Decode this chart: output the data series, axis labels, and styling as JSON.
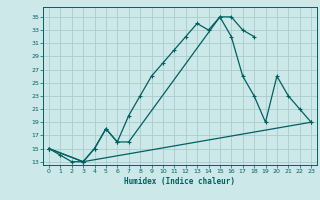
{
  "xlabel": "Humidex (Indice chaleur)",
  "bg_color": "#cde8e8",
  "grid_color": "#aacccc",
  "line_color": "#006060",
  "xlim": [
    -0.5,
    23.5
  ],
  "ylim": [
    12.5,
    36.5
  ],
  "xticks": [
    0,
    1,
    2,
    3,
    4,
    5,
    6,
    7,
    8,
    9,
    10,
    11,
    12,
    13,
    14,
    15,
    16,
    17,
    18,
    19,
    20,
    21,
    22,
    23
  ],
  "yticks": [
    13,
    15,
    17,
    19,
    21,
    23,
    25,
    27,
    29,
    31,
    33,
    35
  ],
  "line1_x": [
    0,
    1,
    2,
    3,
    4,
    5,
    6,
    7,
    8,
    9,
    10,
    11,
    12,
    13,
    14,
    15,
    16,
    17,
    18
  ],
  "line1_y": [
    15,
    14,
    13,
    13,
    15,
    18,
    16,
    20,
    23,
    26,
    28,
    30,
    32,
    34,
    33,
    35,
    35,
    33,
    32
  ],
  "line2_x": [
    0,
    3,
    4,
    5,
    6,
    7,
    15,
    16,
    17,
    18,
    19,
    20,
    21,
    22,
    23
  ],
  "line2_y": [
    15,
    13,
    15,
    18,
    16,
    16,
    35,
    32,
    26,
    23,
    19,
    26,
    23,
    21,
    19
  ],
  "line3_x": [
    0,
    3,
    23
  ],
  "line3_y": [
    15,
    13,
    19
  ]
}
